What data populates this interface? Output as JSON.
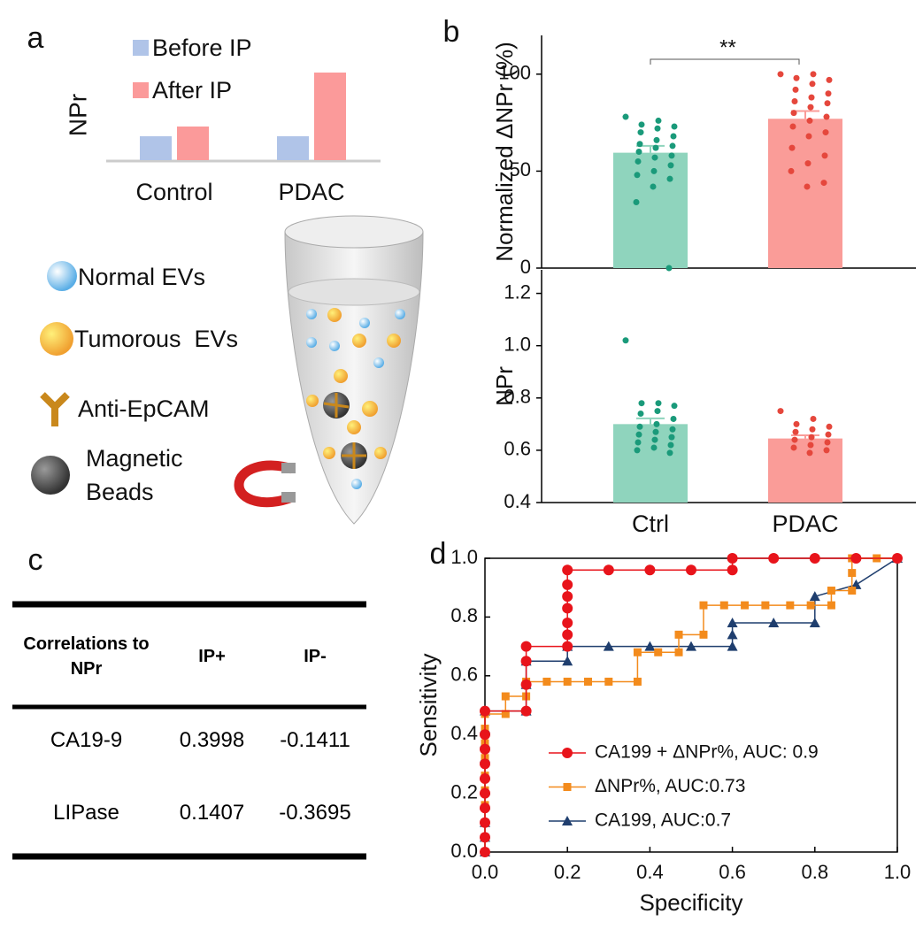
{
  "panels": [
    "a",
    "b",
    "c",
    "d"
  ],
  "diagram": {
    "items": [
      "Normal EVs",
      "Tumorous  EVs",
      "Anti-EpCAM",
      "Magnetic Beads"
    ]
  },
  "table": {
    "header": [
      "Correlations to NPr",
      "IP+",
      "IP-"
    ],
    "rows": [
      [
        "CA19-9",
        "0.3998",
        "-0.1411"
      ],
      [
        "LIPase",
        "0.1407",
        "-0.3695"
      ]
    ]
  },
  "chart_data": [
    {
      "type": "bar",
      "ylabel": "NPr",
      "categories": [
        "Control",
        "PDAC"
      ],
      "ylim": [
        0,
        110
      ],
      "series": [
        {
          "name": "Before IP",
          "color": "#b0c4e8",
          "values": [
            27,
            27
          ]
        },
        {
          "name": "After IP",
          "color": "#fb9a9a",
          "values": [
            38,
            99
          ]
        }
      ]
    },
    {
      "type": "dotbar",
      "ylabel": "Normalized ΔNPr (%)",
      "categories": [
        null,
        null
      ],
      "values": [
        59.5,
        77
      ],
      "errors": [
        3.5,
        4
      ],
      "colors": [
        "#8fd4bd",
        "#fa9c98"
      ],
      "point_colors": [
        "#1a9a7a",
        "#e5473c"
      ],
      "points": [
        [
          78,
          76,
          74,
          73,
          72,
          70,
          68,
          66,
          64,
          63,
          62,
          60,
          58,
          57,
          55,
          53,
          50,
          48,
          46,
          42,
          34,
          0
        ],
        [
          100,
          100,
          98,
          97,
          95,
          92,
          90,
          88,
          86,
          85,
          83,
          80,
          78,
          76,
          73,
          70,
          68,
          62,
          58,
          54,
          50,
          44,
          42
        ]
      ],
      "ylim": [
        0,
        120
      ],
      "yticks": [
        0,
        50,
        100
      ],
      "annotation": "**"
    },
    {
      "type": "dotbar",
      "ylabel": "NPr",
      "categories": [
        "Ctrl",
        "PDAC"
      ],
      "values": [
        0.7,
        0.645
      ],
      "errors": [
        0.022,
        0.012
      ],
      "colors": [
        "#8fd4bd",
        "#fa9c98"
      ],
      "point_colors": [
        "#1a9a7a",
        "#e5473c"
      ],
      "points": [
        [
          1.02,
          0.78,
          0.78,
          0.77,
          0.75,
          0.74,
          0.72,
          0.7,
          0.69,
          0.68,
          0.67,
          0.66,
          0.65,
          0.64,
          0.63,
          0.62,
          0.61,
          0.6,
          0.59
        ],
        [
          0.75,
          0.72,
          0.7,
          0.69,
          0.68,
          0.67,
          0.66,
          0.65,
          0.64,
          0.63,
          0.62,
          0.61,
          0.6,
          0.59
        ]
      ],
      "ylim": [
        0.4,
        1.29
      ],
      "yticks": [
        0.4,
        0.6,
        0.8,
        {
          "value": 1,
          "label": "1.0"
        },
        1.2
      ]
    },
    {
      "type": "line",
      "xlabel": "Specificity",
      "ylabel": "Sensitivity",
      "xlim": [
        0,
        1
      ],
      "ylim": [
        0,
        1
      ],
      "xticks": [
        {
          "value": 0,
          "label": "0.0"
        },
        0.2,
        0.4,
        0.6,
        0.8,
        {
          "value": 1,
          "label": "1.0"
        }
      ],
      "yticks": [
        {
          "value": 0,
          "label": "0.0"
        },
        0.2,
        0.4,
        0.6,
        0.8,
        {
          "value": 1,
          "label": "1.0"
        }
      ],
      "series": [
        {
          "name": "CA199 + ΔNPr%, AUC: 0.9",
          "color": "#e8141b",
          "marker": "circle",
          "x": [
            0,
            0,
            0,
            0,
            0,
            0,
            0,
            0,
            0,
            0,
            0.1,
            0.1,
            0.1,
            0.1,
            0.2,
            0.2,
            0.2,
            0.2,
            0.2,
            0.2,
            0.2,
            0.3,
            0.4,
            0.5,
            0.6,
            0.6,
            0.7,
            0.8,
            0.9,
            1
          ],
          "values": [
            0,
            0.05,
            0.1,
            0.15,
            0.2,
            0.25,
            0.3,
            0.35,
            0.4,
            0.48,
            0.48,
            0.57,
            0.65,
            0.7,
            0.7,
            0.74,
            0.78,
            0.83,
            0.87,
            0.91,
            0.96,
            0.96,
            0.96,
            0.96,
            0.96,
            1,
            1,
            1,
            1,
            1
          ]
        },
        {
          "name": "ΔNPr%, AUC:0.73",
          "color": "#f38b1c",
          "marker": "square",
          "x": [
            0,
            0,
            0,
            0,
            0,
            0,
            0,
            0,
            0,
            0,
            0.05,
            0.05,
            0.1,
            0.1,
            0.15,
            0.2,
            0.25,
            0.3,
            0.37,
            0.37,
            0.42,
            0.47,
            0.47,
            0.53,
            0.53,
            0.58,
            0.63,
            0.68,
            0.74,
            0.79,
            0.84,
            0.84,
            0.89,
            0.89,
            0.89,
            0.95,
            1
          ],
          "values": [
            0,
            0.05,
            0.1,
            0.16,
            0.21,
            0.26,
            0.32,
            0.37,
            0.42,
            0.47,
            0.47,
            0.53,
            0.53,
            0.58,
            0.58,
            0.58,
            0.58,
            0.58,
            0.58,
            0.68,
            0.68,
            0.68,
            0.74,
            0.74,
            0.84,
            0.84,
            0.84,
            0.84,
            0.84,
            0.84,
            0.84,
            0.89,
            0.89,
            0.95,
            1,
            1,
            1
          ]
        },
        {
          "name": "CA199, AUC:0.7",
          "color": "#1f3e6e",
          "marker": "triangle",
          "x": [
            0,
            0,
            0,
            0,
            0,
            0,
            0,
            0,
            0,
            0,
            0.1,
            0.1,
            0.1,
            0.2,
            0.2,
            0.3,
            0.4,
            0.5,
            0.6,
            0.6,
            0.6,
            0.7,
            0.8,
            0.8,
            0.9,
            1
          ],
          "values": [
            0,
            0.05,
            0.1,
            0.16,
            0.21,
            0.26,
            0.32,
            0.37,
            0.42,
            0.48,
            0.48,
            0.57,
            0.65,
            0.65,
            0.7,
            0.7,
            0.7,
            0.7,
            0.7,
            0.74,
            0.78,
            0.78,
            0.78,
            0.87,
            0.91,
            1
          ]
        }
      ]
    }
  ]
}
